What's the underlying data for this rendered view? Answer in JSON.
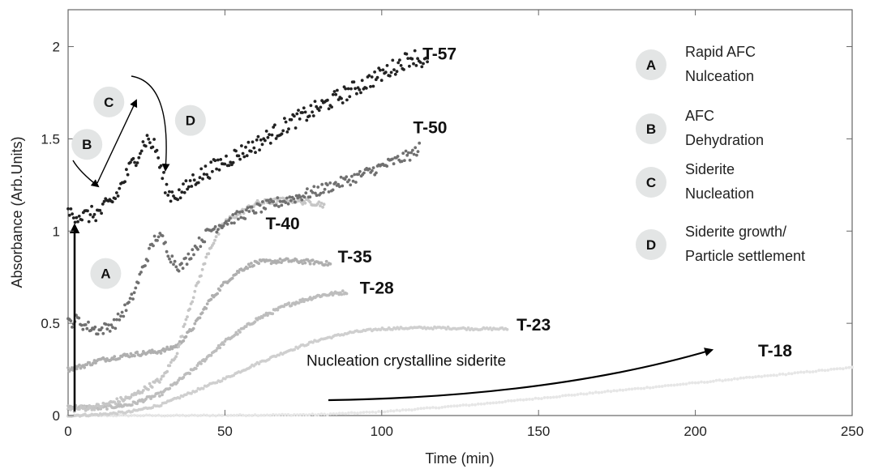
{
  "chart_data": {
    "type": "scatter",
    "xlabel": "Time (min)",
    "ylabel": "Absorbance (Arb.Units)",
    "xlim": [
      0,
      250
    ],
    "ylim": [
      0,
      2.2
    ],
    "xticks": [
      0,
      50,
      100,
      150,
      200,
      250
    ],
    "yticks": [
      0,
      0.5,
      1,
      1.5,
      2
    ],
    "xtick_labels": [
      "0",
      "50",
      "100",
      "150",
      "200",
      "250"
    ],
    "ytick_labels": [
      "0",
      "0.5",
      "1",
      "1.5",
      "2"
    ],
    "grid": false,
    "series": [
      {
        "name": "T-18",
        "color": "#e6e6e6",
        "noise": 0.003,
        "points": [
          [
            0,
            0.0
          ],
          [
            40,
            0.0
          ],
          [
            80,
            0.005
          ],
          [
            100,
            0.02
          ],
          [
            130,
            0.06
          ],
          [
            160,
            0.11
          ],
          [
            190,
            0.16
          ],
          [
            220,
            0.21
          ],
          [
            250,
            0.26
          ]
        ]
      },
      {
        "name": "T-23",
        "color": "#cfcfcf",
        "noise": 0.006,
        "points": [
          [
            0,
            0.0
          ],
          [
            10,
            0.005
          ],
          [
            20,
            0.02
          ],
          [
            30,
            0.06
          ],
          [
            40,
            0.13
          ],
          [
            50,
            0.2
          ],
          [
            60,
            0.28
          ],
          [
            70,
            0.35
          ],
          [
            80,
            0.41
          ],
          [
            90,
            0.45
          ],
          [
            100,
            0.47
          ],
          [
            110,
            0.475
          ],
          [
            120,
            0.475
          ],
          [
            130,
            0.47
          ],
          [
            140,
            0.47
          ]
        ]
      },
      {
        "name": "T-28",
        "color": "#bdbdbd",
        "noise": 0.01,
        "points": [
          [
            0,
            0.05
          ],
          [
            10,
            0.04
          ],
          [
            20,
            0.06
          ],
          [
            30,
            0.12
          ],
          [
            40,
            0.25
          ],
          [
            50,
            0.4
          ],
          [
            60,
            0.52
          ],
          [
            70,
            0.6
          ],
          [
            80,
            0.65
          ],
          [
            89,
            0.67
          ]
        ]
      },
      {
        "name": "T-35",
        "color": "#afafaf",
        "noise": 0.012,
        "points": [
          [
            0,
            0.25
          ],
          [
            5,
            0.27
          ],
          [
            10,
            0.3
          ],
          [
            20,
            0.33
          ],
          [
            30,
            0.35
          ],
          [
            35,
            0.38
          ],
          [
            40,
            0.48
          ],
          [
            45,
            0.62
          ],
          [
            50,
            0.72
          ],
          [
            55,
            0.79
          ],
          [
            60,
            0.83
          ],
          [
            70,
            0.84
          ],
          [
            80,
            0.83
          ],
          [
            84,
            0.82
          ]
        ]
      },
      {
        "name": "T-40",
        "color": "#c6c6c6",
        "noise": 0.015,
        "points": [
          [
            0,
            0.03
          ],
          [
            10,
            0.05
          ],
          [
            20,
            0.1
          ],
          [
            30,
            0.2
          ],
          [
            35,
            0.35
          ],
          [
            38,
            0.55
          ],
          [
            42,
            0.75
          ],
          [
            45,
            0.9
          ],
          [
            50,
            1.05
          ],
          [
            60,
            1.15
          ],
          [
            70,
            1.17
          ],
          [
            80,
            1.15
          ],
          [
            82,
            1.14
          ]
        ]
      },
      {
        "name": "T-50",
        "color": "#707070",
        "noise": 0.03,
        "points": [
          [
            0,
            0.5
          ],
          [
            3,
            0.52
          ],
          [
            5,
            0.49
          ],
          [
            10,
            0.46
          ],
          [
            15,
            0.5
          ],
          [
            20,
            0.62
          ],
          [
            25,
            0.85
          ],
          [
            28,
            0.97
          ],
          [
            30,
            0.96
          ],
          [
            33,
            0.85
          ],
          [
            36,
            0.8
          ],
          [
            40,
            0.9
          ],
          [
            45,
            1.0
          ],
          [
            50,
            1.05
          ],
          [
            60,
            1.12
          ],
          [
            70,
            1.17
          ],
          [
            80,
            1.22
          ],
          [
            90,
            1.28
          ],
          [
            100,
            1.35
          ],
          [
            110,
            1.42
          ],
          [
            112,
            1.45
          ]
        ]
      },
      {
        "name": "T-57",
        "color": "#222222",
        "noise": 0.045,
        "points": [
          [
            0,
            1.1
          ],
          [
            5,
            1.08
          ],
          [
            10,
            1.1
          ],
          [
            15,
            1.18
          ],
          [
            20,
            1.35
          ],
          [
            25,
            1.5
          ],
          [
            28,
            1.45
          ],
          [
            30,
            1.3
          ],
          [
            32,
            1.2
          ],
          [
            36,
            1.2
          ],
          [
            40,
            1.28
          ],
          [
            50,
            1.38
          ],
          [
            60,
            1.47
          ],
          [
            70,
            1.58
          ],
          [
            80,
            1.67
          ],
          [
            90,
            1.76
          ],
          [
            100,
            1.85
          ],
          [
            110,
            1.95
          ],
          [
            115,
            1.9
          ]
        ]
      }
    ],
    "series_labels": [
      {
        "text": "T-57",
        "x": 113,
        "y": 1.93
      },
      {
        "text": "T-50",
        "x": 110,
        "y": 1.53
      },
      {
        "text": "T-40",
        "x": 63,
        "y": 1.01
      },
      {
        "text": "T-35",
        "x": 86,
        "y": 0.83
      },
      {
        "text": "T-28",
        "x": 93,
        "y": 0.66
      },
      {
        "text": "T-23",
        "x": 143,
        "y": 0.46
      },
      {
        "text": "T-18",
        "x": 220,
        "y": 0.32
      }
    ],
    "annotation": {
      "text": "Nucleation crystalline siderite",
      "x": 76,
      "y": 0.27
    },
    "stage_badges": [
      {
        "letter": "A",
        "x": 12,
        "y": 0.77
      },
      {
        "letter": "B",
        "x": 6,
        "y": 1.47
      },
      {
        "letter": "C",
        "x": 13,
        "y": 1.7
      },
      {
        "letter": "D",
        "x": 39,
        "y": 1.6
      }
    ],
    "legend": {
      "placement": "right",
      "items": [
        {
          "letter": "A",
          "lines": [
            "Rapid AFC",
            "Nulceation"
          ]
        },
        {
          "letter": "B",
          "lines": [
            "AFC",
            "Dehydration"
          ]
        },
        {
          "letter": "C",
          "lines": [
            "Siderite",
            "Nucleation"
          ]
        },
        {
          "letter": "D",
          "lines": [
            "Siderite growth/",
            "Particle settlement"
          ]
        }
      ]
    }
  }
}
